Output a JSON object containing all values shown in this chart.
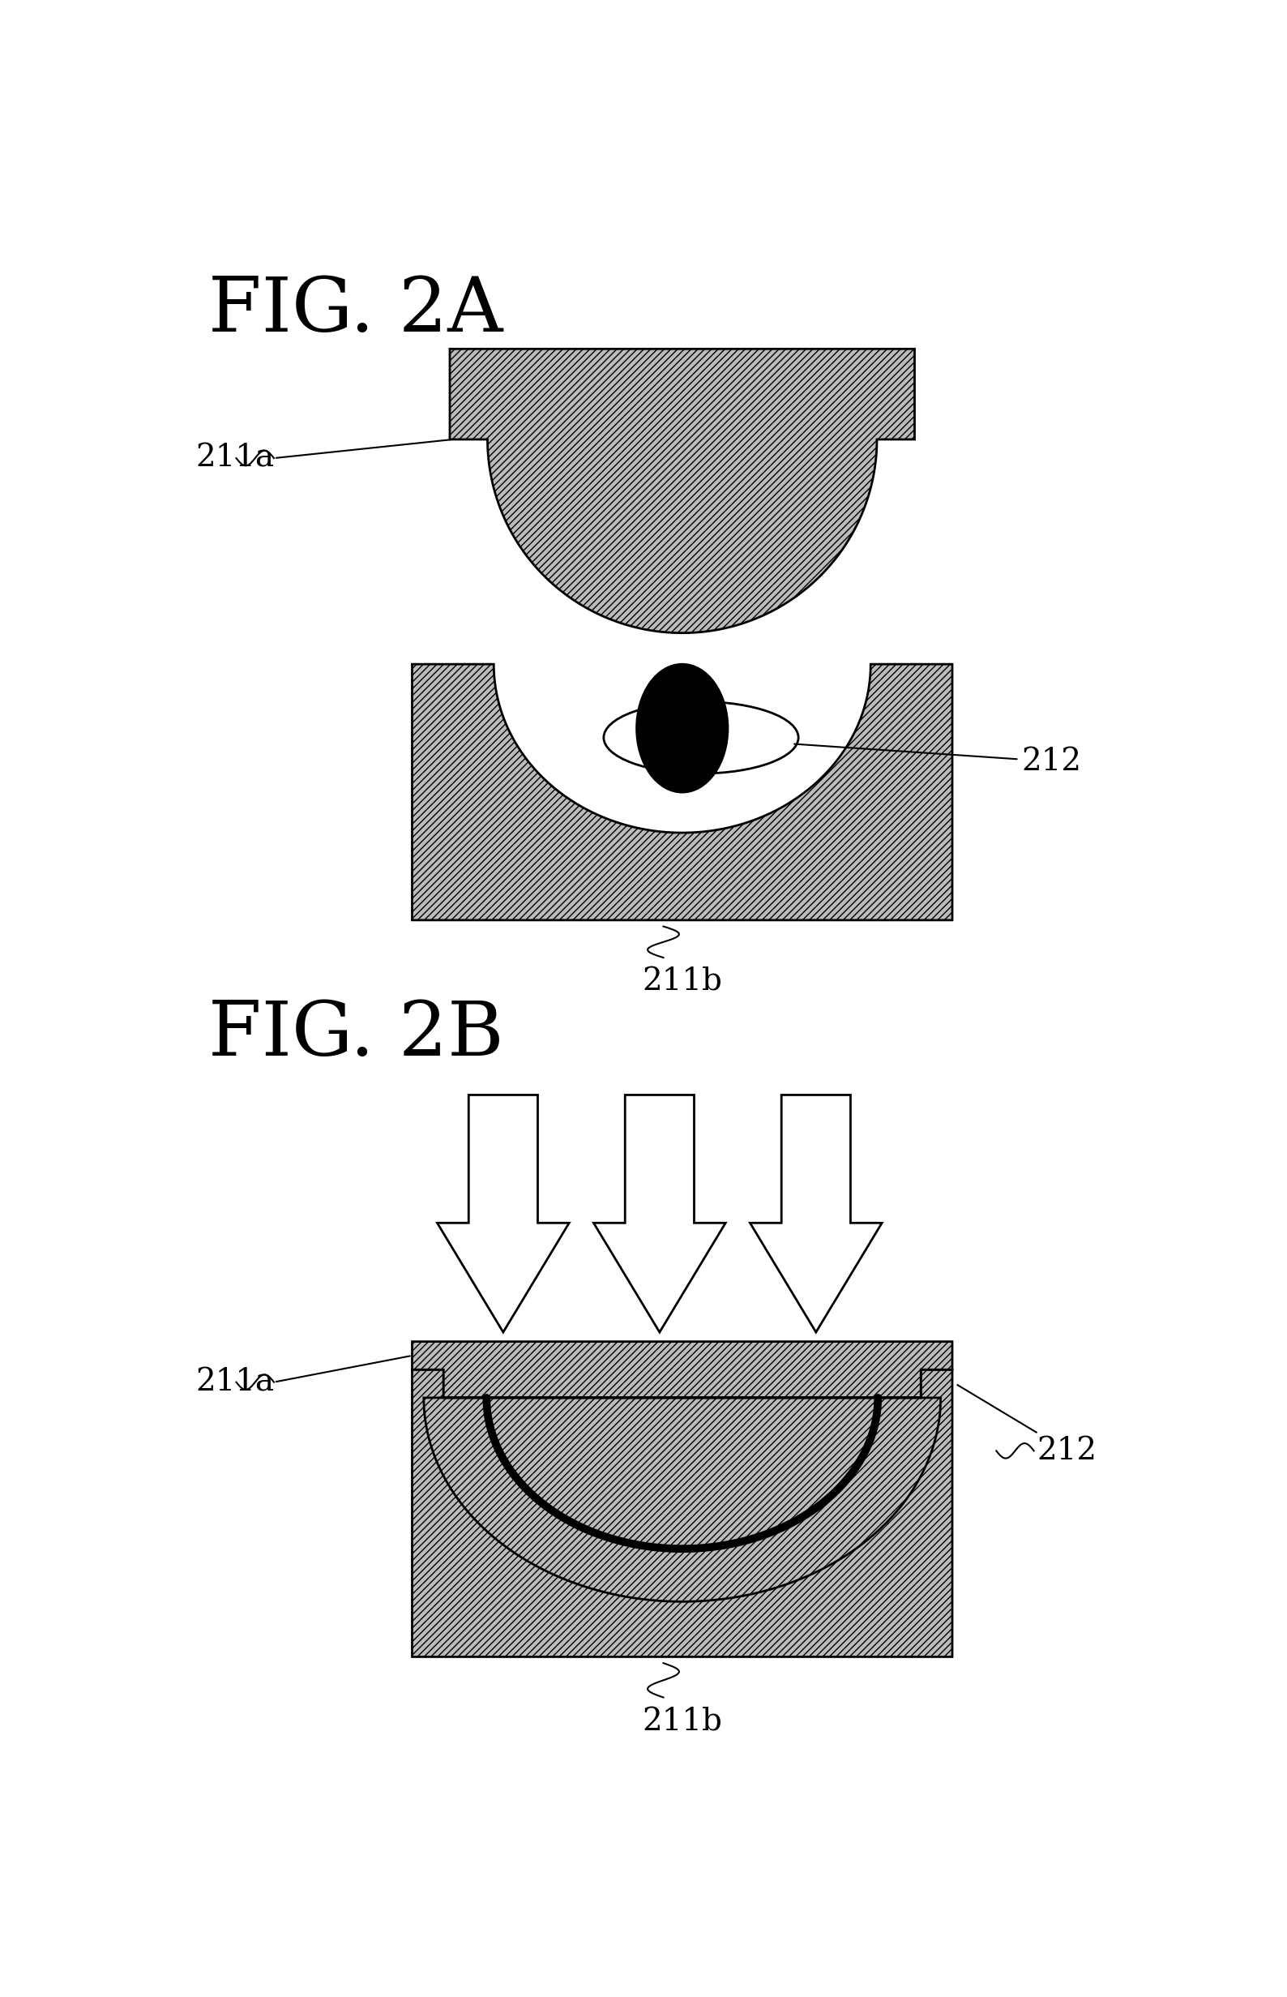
{
  "fig_title_2A": "FIG. 2A",
  "fig_title_2B": "FIG. 2B",
  "label_211a_1": "211a",
  "label_211b_1": "211b",
  "label_212_1": "212",
  "label_211a_2": "211a",
  "label_211b_2": "211b",
  "label_212_2": "212",
  "hatch_pattern": "////",
  "bg": "#ffffff",
  "fc": "#bbbbbb",
  "ec": "#000000",
  "title_fontsize": 68,
  "label_fontsize": 28
}
